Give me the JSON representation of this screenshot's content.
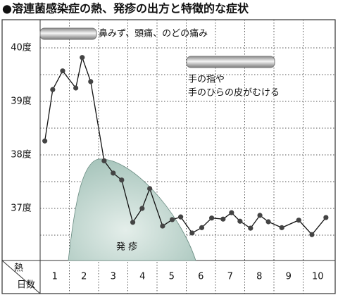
{
  "chart_data": {
    "type": "line",
    "title": "●溶連菌感染症の熱、発疹の出方と特徴的な症状",
    "corner_top": "熱",
    "corner_bottom": "日数",
    "annotations": [
      "鼻みず、頭痛、のどの痛み",
      "手の指や",
      "手のひらの皮がむける",
      "発 疹"
    ],
    "x": [
      0.66,
      0.93,
      1.27,
      1.72,
      1.94,
      2.23,
      2.69,
      3.0,
      3.29,
      3.67,
      3.99,
      4.25,
      4.69,
      5.02,
      5.31,
      5.7,
      6.03,
      6.37,
      6.76,
      7.05,
      7.34,
      7.7,
      8.02,
      8.31,
      8.77,
      9.35,
      9.8,
      10.28
    ],
    "values": [
      38.26,
      39.22,
      39.57,
      39.25,
      39.82,
      39.37,
      37.89,
      37.66,
      37.53,
      36.74,
      37.0,
      37.37,
      36.67,
      36.79,
      36.84,
      36.54,
      36.64,
      36.82,
      36.8,
      36.92,
      36.76,
      36.63,
      36.87,
      36.75,
      36.64,
      36.78,
      36.51,
      36.83
    ],
    "color": "#111111",
    "marker_color": "#444444",
    "xlim": [
      0.5,
      10.5
    ],
    "xticks": [
      1,
      2,
      3,
      4,
      5,
      6,
      7,
      8,
      9,
      10
    ],
    "ylim": [
      36,
      40.5
    ],
    "yticks": [
      {
        "value": 37,
        "label": "37度"
      },
      {
        "value": 38,
        "label": "38度"
      },
      {
        "value": 39,
        "label": "39度"
      },
      {
        "value": 40,
        "label": "40度"
      }
    ],
    "yminor": [
      36.5,
      37.5,
      38.5,
      39.5
    ],
    "grid": true
  }
}
